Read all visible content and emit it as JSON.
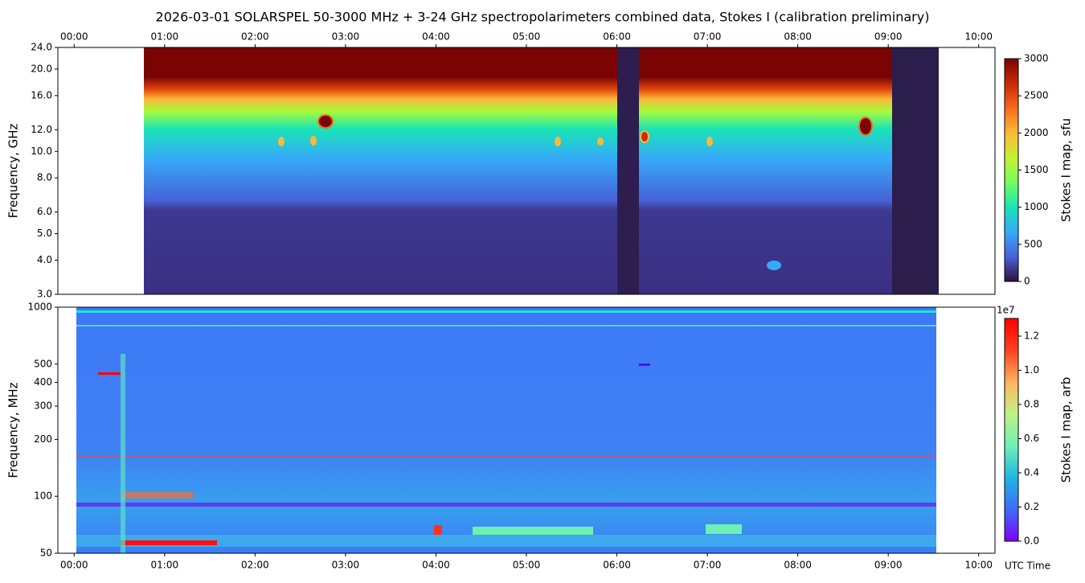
{
  "chart_data": [
    {
      "type": "heatmap",
      "title": "2026-03-01  SOLARSPEL  50-3000 MHz  +  3-24 GHz  spectropolarimeters combined data,  Stokes I  (calibration preliminary)",
      "y_label": "Frequency, GHz",
      "y_log": true,
      "ylim": [
        3,
        24
      ],
      "yticks": [
        {
          "value": 3,
          "label": "3.0"
        },
        {
          "value": 4,
          "label": "4.0"
        },
        {
          "value": 5,
          "label": "5.0"
        },
        {
          "value": 6,
          "label": "6.0"
        },
        {
          "value": 8,
          "label": "8.0"
        },
        {
          "value": 10,
          "label": "10.0"
        },
        {
          "value": 12,
          "label": "12.0"
        },
        {
          "value": 16,
          "label": "16.0"
        },
        {
          "value": 20,
          "label": "20.0"
        },
        {
          "value": 24,
          "label": "24.0"
        }
      ],
      "xlim": [
        -0.18,
        10.18
      ],
      "xtick_side": "top",
      "xticks": [
        {
          "value": 0,
          "label": "00:00"
        },
        {
          "value": 1,
          "label": "01:00"
        },
        {
          "value": 2,
          "label": "02:00"
        },
        {
          "value": 3,
          "label": "03:00"
        },
        {
          "value": 4,
          "label": "04:00"
        },
        {
          "value": 5,
          "label": "05:00"
        },
        {
          "value": 6,
          "label": "06:00"
        },
        {
          "value": 7,
          "label": "07:00"
        },
        {
          "value": 8,
          "label": "08:00"
        },
        {
          "value": 9,
          "label": "09:00"
        },
        {
          "value": 10,
          "label": "10:00"
        }
      ],
      "colorbar": {
        "label": "Stokes I map, sfu",
        "lim": [
          0,
          3000
        ],
        "ticks": [
          0,
          500,
          1000,
          1500,
          2000,
          2500,
          3000
        ],
        "colors": [
          "#30123b",
          "#4662d7",
          "#36aaf9",
          "#1ae4b6",
          "#72fe5e",
          "#c7ef34",
          "#faba39",
          "#f66b19",
          "#ca2a04",
          "#7a0403"
        ]
      }
    },
    {
      "type": "heatmap",
      "y_label": "Frequency, MHz",
      "y_log": true,
      "ylim": [
        50,
        1000
      ],
      "yticks": [
        50,
        100,
        200,
        300,
        400,
        500,
        1000
      ],
      "xlim": [
        -0.18,
        10.18
      ],
      "xtick_side": "bottom",
      "x_label": "UTC Time",
      "xticks": [
        {
          "value": 0,
          "label": "00:00"
        },
        {
          "value": 1,
          "label": "01:00"
        },
        {
          "value": 2,
          "label": "02:00"
        },
        {
          "value": 3,
          "label": "03:00"
        },
        {
          "value": 4,
          "label": "04:00"
        },
        {
          "value": 5,
          "label": "05:00"
        },
        {
          "value": 6,
          "label": "06:00"
        },
        {
          "value": 7,
          "label": "07:00"
        },
        {
          "value": 8,
          "label": "08:00"
        },
        {
          "value": 9,
          "label": "09:00"
        },
        {
          "value": 10,
          "label": "10:00"
        }
      ],
      "colorbar": {
        "label": "Stokes I map, arb",
        "offset_label": "1e7",
        "lim": [
          0,
          1.3035
        ],
        "ticks": [
          {
            "value": 0,
            "label": "0.0"
          },
          0.2,
          0.4,
          0.6,
          0.8,
          {
            "value": 1,
            "label": "1.0"
          },
          1.2
        ],
        "colors": [
          "#8000ff",
          "#3f6bf7",
          "#1fb6e3",
          "#6ef0b5",
          "#c0f286",
          "#ffb360",
          "#ff4020",
          "#ff0000"
        ]
      }
    }
  ]
}
